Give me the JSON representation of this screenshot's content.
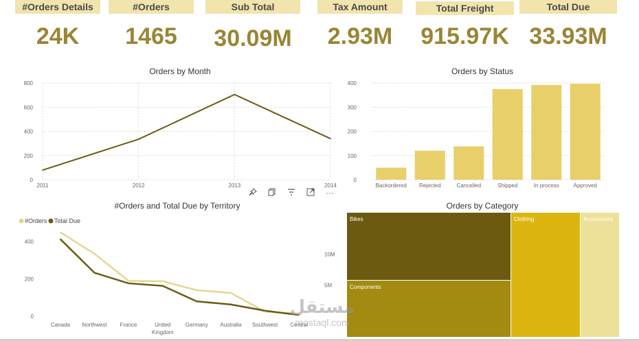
{
  "kpis": [
    {
      "label": "#Orders Details",
      "value": "24K"
    },
    {
      "label": "#Orders",
      "value": "1465"
    },
    {
      "label": "Sub Total",
      "value": "30.09M"
    },
    {
      "label": "Tax Amount",
      "value": "2.93M"
    },
    {
      "label": "Total Freight",
      "value": "915.97K"
    },
    {
      "label": "Total Due",
      "value": "33.93M"
    }
  ],
  "toolbar": {
    "icons": [
      "pin-icon",
      "copy-icon",
      "filter-icon",
      "focus-mode-icon",
      "more-options-icon"
    ],
    "more_label": "···"
  },
  "watermark": {
    "arabic": "مستقل",
    "latin": "mostaql.com"
  },
  "colors": {
    "kpi_bg": "#f1e4ad",
    "kpi_value": "#9a8535",
    "line_dark": "#6b5a14",
    "bar": "#e9cf6a",
    "line_light": "#e6d690",
    "tm_bikes": "#6b5a0f",
    "tm_components": "#a38a10",
    "tm_clothing": "#ddb510",
    "tm_accessories": "#ede098"
  },
  "chart_data": [
    {
      "type": "line",
      "title": "Orders by Month",
      "x": [
        "2011",
        "2012",
        "2013",
        "2014"
      ],
      "series": [
        {
          "values": [
            80,
            335,
            705,
            340
          ]
        }
      ],
      "ylim": [
        0,
        800
      ],
      "yticks": [
        "0",
        "200",
        "400",
        "600",
        "800"
      ],
      "grid": true
    },
    {
      "type": "bar",
      "title": "Orders by Status",
      "categories": [
        "Backordered",
        "Rejected",
        "Cancelled",
        "Shipped",
        "In process",
        "Approved"
      ],
      "values": [
        50,
        120,
        138,
        375,
        392,
        397
      ],
      "ylim": [
        0,
        400
      ],
      "yticks": [
        "0",
        "100",
        "200",
        "300",
        "400"
      ],
      "grid": true
    },
    {
      "type": "line",
      "title": "#Orders and Total Due by Territory",
      "categories": [
        "Canada",
        "Northwest",
        "France",
        "United Kingdom",
        "Germany",
        "Australia",
        "Southwest",
        "Central"
      ],
      "category_lines": [
        [
          "Canada"
        ],
        [
          "Northwest"
        ],
        [
          "France"
        ],
        [
          "United",
          "Kingdom"
        ],
        [
          "Germany"
        ],
        [
          "Australia"
        ],
        [
          "Southwest"
        ],
        [
          "Central"
        ]
      ],
      "series": [
        {
          "name": "#Orders",
          "axis": "left",
          "values": [
            450,
            335,
            190,
            188,
            140,
            125,
            25,
            15
          ]
        },
        {
          "name": "Total Due",
          "axis": "right",
          "values": [
            12.4,
            7.0,
            5.3,
            4.9,
            2.4,
            1.9,
            0.9,
            0.2
          ]
        }
      ],
      "ylim": [
        0,
        500
      ],
      "yticks": [
        "0",
        "200",
        "400"
      ],
      "y2lim": [
        0,
        15
      ],
      "y2ticks": [
        "5M",
        "10M"
      ],
      "legend": "top-left"
    },
    {
      "type": "treemap",
      "title": "Orders by Category",
      "items": [
        {
          "name": "Bikes",
          "color": "#6b5a0f"
        },
        {
          "name": "Components",
          "color": "#a38a10"
        },
        {
          "name": "Clothing",
          "color": "#ddb510"
        },
        {
          "name": "Accessories",
          "color": "#ede098"
        }
      ]
    }
  ]
}
